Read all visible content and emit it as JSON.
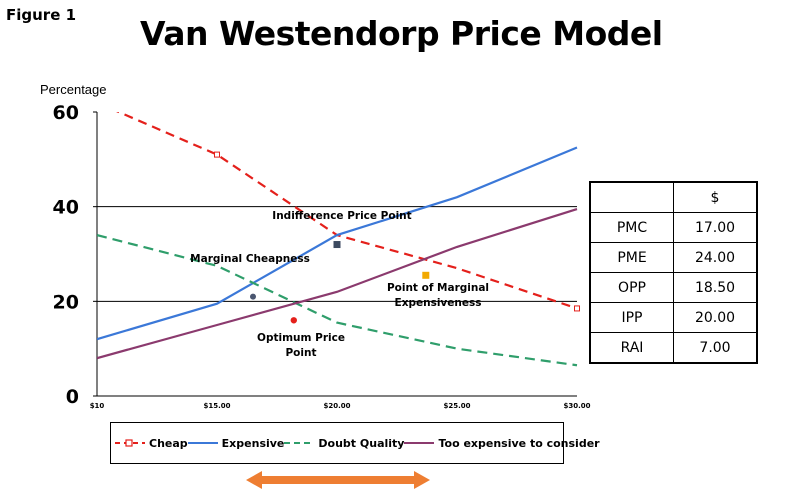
{
  "figure_label": "Figure 1",
  "title": "Van Westendorp Price Model",
  "colors": {
    "cheap": "#e4201b",
    "expensive": "#3b78d8",
    "doubt": "#2f9e6b",
    "too_expensive": "#8b3a6e",
    "arrow": "#ee7e32"
  },
  "chart_data": {
    "type": "line",
    "ylabel": "Percentage",
    "xlim": [
      10,
      30
    ],
    "ylim": [
      0,
      60
    ],
    "x_ticks": [
      "$10",
      "$15.00",
      "$20.00",
      "$25.00",
      "$30.00"
    ],
    "y_ticks": [
      "60",
      "40",
      "20",
      "0"
    ],
    "x": [
      10,
      15,
      20,
      25,
      30
    ],
    "series": [
      {
        "name": "Cheap",
        "values": [
          62,
          51,
          34,
          27,
          18.5
        ]
      },
      {
        "name": "Expensive",
        "values": [
          12,
          19.5,
          34,
          42,
          52.5
        ]
      },
      {
        "name": "Doubt Quality",
        "values": [
          34,
          27.5,
          15.5,
          10,
          6.5
        ]
      },
      {
        "name": "Too expensive to consider",
        "values": [
          8,
          15,
          22,
          31.5,
          39.5
        ]
      }
    ],
    "points": [
      {
        "key": "ipp",
        "x": 20,
        "y": 32
      },
      {
        "key": "pmc",
        "x": 16.5,
        "y": 21
      },
      {
        "key": "opp",
        "x": 18.2,
        "y": 16
      },
      {
        "key": "pme",
        "x": 23.7,
        "y": 25.5
      }
    ],
    "annotations": {
      "ipp": "Indifference Price Point",
      "pmc": "Marginal Cheapness",
      "opp": [
        "Optimum Price",
        "Point"
      ],
      "pme": [
        "Point of Marginal",
        "Expensiveness"
      ]
    },
    "legend": "bottom",
    "grid": "horizontal"
  },
  "summary_table": {
    "header": "$",
    "rows": [
      {
        "label": "PMC",
        "value": "17.00"
      },
      {
        "label": "PME",
        "value": "24.00"
      },
      {
        "label": "OPP",
        "value": "18.50"
      },
      {
        "label": "IPP",
        "value": "20.00"
      },
      {
        "label": "RAI",
        "value": "7.00"
      }
    ]
  }
}
